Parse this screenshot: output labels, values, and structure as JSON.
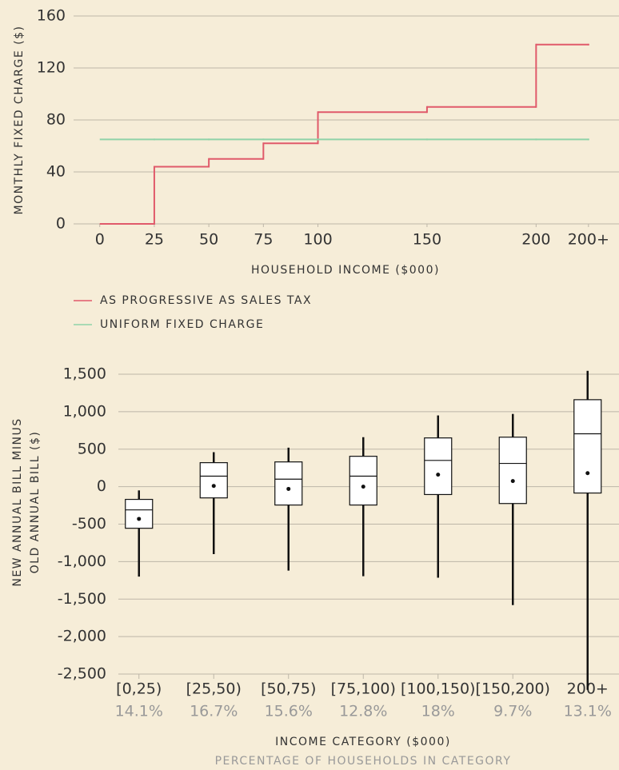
{
  "chart_data": [
    {
      "type": "line",
      "step": "post",
      "x_label": "HOUSEHOLD INCOME ($000)",
      "y_label": "MONTHLY FIXED CHARGE ($)",
      "x": [
        0,
        25,
        50,
        75,
        100,
        150,
        200,
        224
      ],
      "series": [
        {
          "name": "AS PROGRESSIVE AS SALES TAX",
          "color": "#e05a6a",
          "values": [
            0,
            44,
            50,
            62,
            86,
            90,
            138,
            138
          ]
        },
        {
          "name": "UNIFORM FIXED CHARGE",
          "color": "#8fd3a8",
          "values": [
            65,
            65,
            65,
            65,
            65,
            65,
            65,
            65
          ]
        }
      ],
      "xlim": [
        -12,
        238
      ],
      "xticks": [
        0,
        25,
        50,
        75,
        100,
        150,
        200,
        {
          "value": 224,
          "label": "200+"
        }
      ],
      "ylim": [
        0,
        160
      ],
      "yticks": [
        0,
        40,
        80,
        120,
        160
      ],
      "grid": true,
      "legend": "bottom-left"
    },
    {
      "type": "box",
      "x_label": "INCOME CATEGORY ($000)",
      "x_sublabel": "PERCENTAGE OF HOUSEHOLDS IN CATEGORY",
      "y_label": [
        "NEW ANNUAL BILL MINUS",
        "OLD ANNUAL BILL ($)"
      ],
      "categories": [
        "[0,25)",
        "[25,50)",
        "[50,75)",
        "[75,100)",
        "[100,150)",
        "[150,200)",
        "200+"
      ],
      "subcategories": [
        "14.1%",
        "16.7%",
        "15.6%",
        "12.8%",
        "18%",
        "9.7%",
        "13.1%"
      ],
      "whisker_high": [
        -50,
        460,
        520,
        660,
        950,
        970,
        1545
      ],
      "q3": [
        -170,
        320,
        330,
        405,
        650,
        660,
        1160
      ],
      "median": [
        -310,
        140,
        100,
        140,
        350,
        310,
        705
      ],
      "mean": [
        -430,
        10,
        -30,
        0,
        160,
        75,
        180
      ],
      "q1": [
        -555,
        -150,
        -245,
        -245,
        -105,
        -225,
        -85
      ],
      "whisker_low": [
        -1200,
        -900,
        -1120,
        -1195,
        -1215,
        -1580,
        -2710
      ],
      "ylim": [
        -2500,
        1500
      ],
      "yticks": [
        {
          "value": 1500,
          "label": "1,500"
        },
        {
          "value": 1000,
          "label": "1,000"
        },
        500,
        0,
        -500,
        {
          "value": -1000,
          "label": "-1,000"
        },
        {
          "value": -1500,
          "label": "-1,500"
        },
        {
          "value": -2000,
          "label": "-2,000"
        },
        {
          "value": -2500,
          "label": "-2,500"
        }
      ],
      "grid": true
    }
  ]
}
